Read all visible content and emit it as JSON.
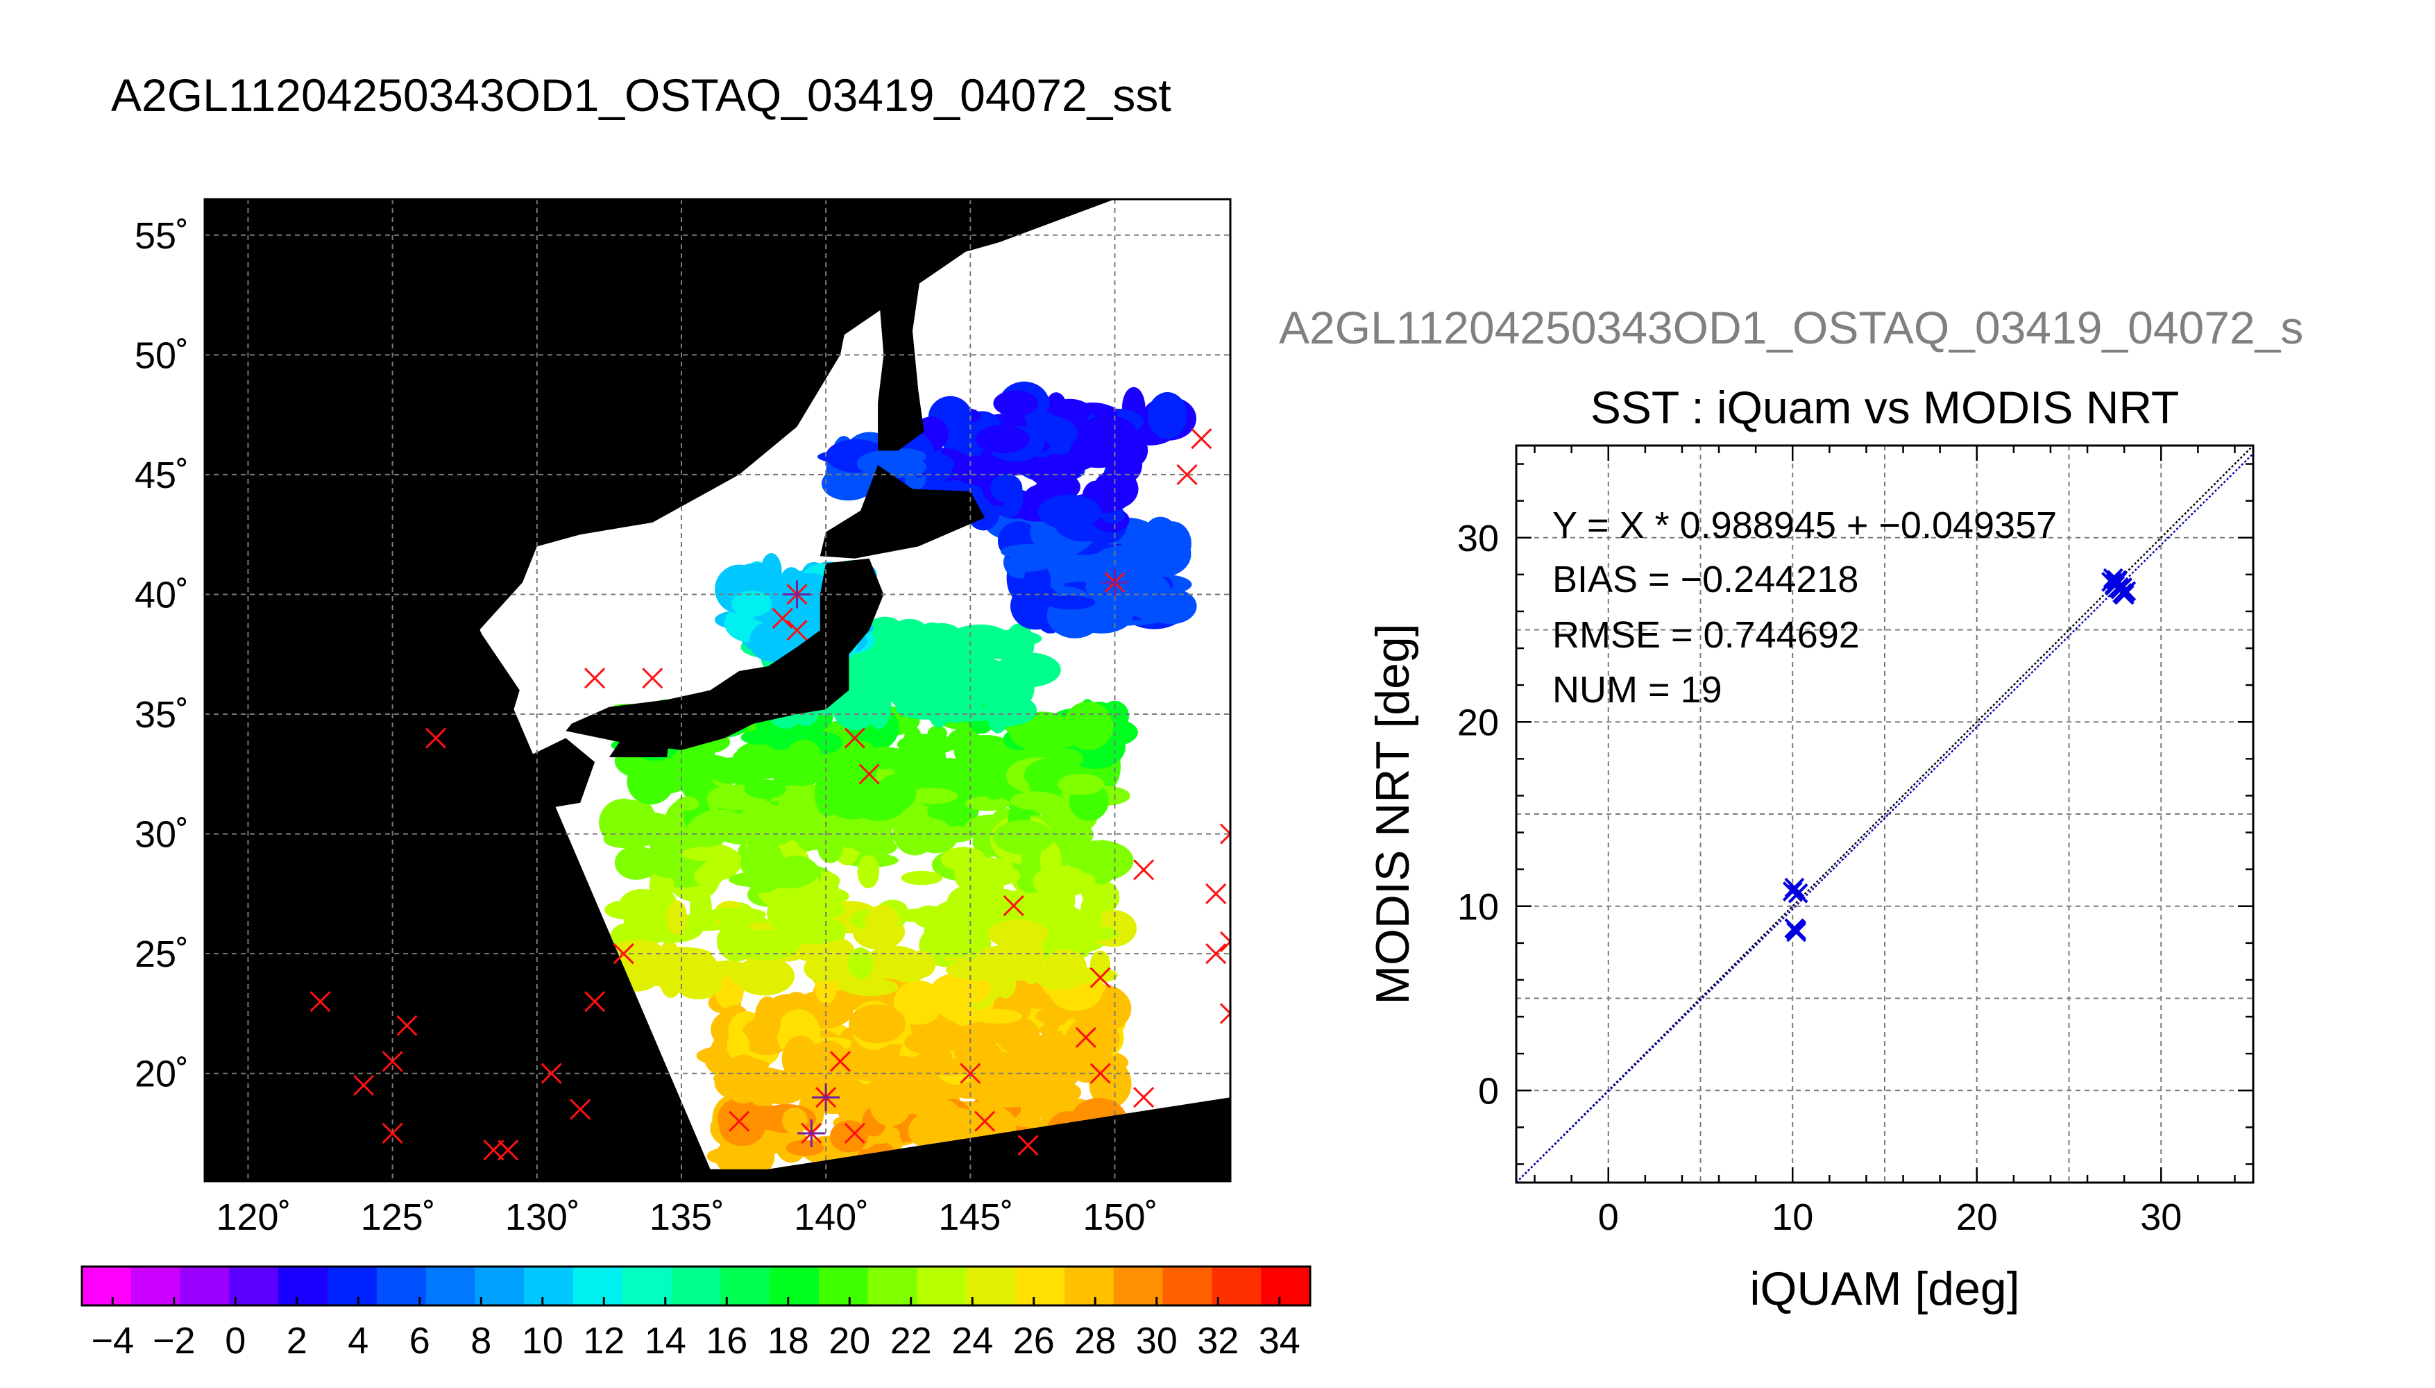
{
  "main_title": "A2GL11204250343OD1_OSTAQ_03419_04072_sst",
  "scatter_header": "A2GL11204250343OD1_OSTAQ_03419_04072_s",
  "chart_data": [
    {
      "type": "heatmap",
      "description_source": "map panel",
      "lon_ticks": [
        120,
        125,
        130,
        135,
        140,
        145,
        150
      ],
      "lat_ticks": [
        20,
        25,
        30,
        35,
        40,
        45,
        50,
        55
      ],
      "lon_tick_labels": [
        "120˚",
        "125˚",
        "130˚",
        "135˚",
        "140˚",
        "145˚",
        "150˚"
      ],
      "lat_tick_labels": [
        "20˚",
        "25˚",
        "30˚",
        "35˚",
        "40˚",
        "45˚",
        "50˚",
        "55˚"
      ],
      "lon_range": [
        118.5,
        154.0
      ],
      "lat_range": [
        15.5,
        56.5
      ],
      "swath_corners_lon_lat": [
        [
          127.5,
          40.0
        ],
        [
          147.5,
          56.5
        ],
        [
          154.0,
          56.5
        ],
        [
          154.0,
          19.0
        ],
        [
          138.0,
          16.0
        ],
        [
          136.0,
          16.0
        ]
      ],
      "colorbar": {
        "ticks": [
          -4,
          -2,
          0,
          2,
          4,
          6,
          8,
          10,
          12,
          14,
          16,
          18,
          20,
          22,
          24,
          26,
          28,
          30,
          32,
          34
        ],
        "tick_labels": [
          "−4",
          "−2",
          "0",
          "2",
          "4",
          "6",
          "8",
          "10",
          "12",
          "14",
          "16",
          "18",
          "20",
          "22",
          "24",
          "26",
          "28",
          "30",
          "32",
          "34"
        ],
        "range": [
          -5,
          35
        ],
        "colors": [
          "#ff00ff",
          "#cc00ff",
          "#9900ff",
          "#5c00ff",
          "#1a00ff",
          "#0022ff",
          "#0050ff",
          "#0078ff",
          "#00a0ff",
          "#00c8ff",
          "#00f0f0",
          "#00ffc0",
          "#00ff8c",
          "#00ff50",
          "#00ff20",
          "#40ff00",
          "#80ff00",
          "#b8ff00",
          "#e0f000",
          "#ffe000",
          "#ffc000",
          "#ff9000",
          "#ff6000",
          "#ff3000",
          "#ff0000"
        ]
      },
      "match_points_lon_lat": [
        [
          122.5,
          23.0
        ],
        [
          124.0,
          19.5
        ],
        [
          125.0,
          20.5
        ],
        [
          125.0,
          17.5
        ],
        [
          125.5,
          22.0
        ],
        [
          126.5,
          34.0
        ],
        [
          128.5,
          16.8
        ],
        [
          129.0,
          16.8
        ],
        [
          130.5,
          20.0
        ],
        [
          131.5,
          18.5
        ],
        [
          132.0,
          23.0
        ],
        [
          133.0,
          25.0
        ],
        [
          132.0,
          36.5
        ],
        [
          134.0,
          36.5
        ],
        [
          137.0,
          18.0
        ],
        [
          138.5,
          39.0
        ],
        [
          139.0,
          38.5
        ],
        [
          139.0,
          40.0
        ],
        [
          139.5,
          17.5
        ],
        [
          140.0,
          19.0
        ],
        [
          140.5,
          20.5
        ],
        [
          141.0,
          17.5
        ],
        [
          141.0,
          34.0
        ],
        [
          141.5,
          32.5
        ],
        [
          145.0,
          20.0
        ],
        [
          145.5,
          18.0
        ],
        [
          146.5,
          27.0
        ],
        [
          147.0,
          17.0
        ],
        [
          149.0,
          21.5
        ],
        [
          149.5,
          20.0
        ],
        [
          149.5,
          24.0
        ],
        [
          150.0,
          40.5
        ],
        [
          151.0,
          19.0
        ],
        [
          151.0,
          28.5
        ],
        [
          152.5,
          45.0
        ],
        [
          153.0,
          46.5
        ],
        [
          153.5,
          25.0
        ],
        [
          153.5,
          27.5
        ],
        [
          154.0,
          25.5
        ],
        [
          154.0,
          30.0
        ],
        [
          154.0,
          22.5
        ]
      ],
      "used_points_lon_lat": [
        [
          139.0,
          40.0
        ],
        [
          140.0,
          19.0
        ],
        [
          139.5,
          17.5
        ],
        [
          150.0,
          40.5
        ]
      ]
    },
    {
      "type": "scatter",
      "title": "SST : iQuam vs MODIS NRT",
      "xlabel": "iQUAM [deg]",
      "ylabel": "MODIS NRT [deg]",
      "xlim": [
        -5,
        35
      ],
      "ylim": [
        -5,
        35
      ],
      "xticks": [
        0,
        10,
        20,
        30
      ],
      "yticks": [
        0,
        10,
        20,
        30
      ],
      "grid": true,
      "annotations": [
        "Y = X * 0.988945 + −0.049357",
        "BIAS = −0.244218",
        "RMSE = 0.744692",
        "NUM = 19"
      ],
      "fit": {
        "slope": 0.988945,
        "intercept": -0.049357
      },
      "series": [
        {
          "color": "#0000e0",
          "x": [
            10.0,
            10.1,
            10.3,
            10.2,
            10.1,
            10.2,
            27.3,
            27.4,
            27.5,
            27.6,
            27.5,
            27.7,
            27.8,
            27.9,
            28.0,
            28.1,
            27.9,
            28.0,
            27.6
          ],
          "y": [
            10.8,
            11.0,
            10.7,
            8.6,
            8.8,
            8.7,
            27.6,
            27.8,
            27.5,
            27.7,
            27.4,
            27.3,
            27.2,
            27.0,
            26.9,
            27.1,
            27.3,
            27.0,
            27.6
          ]
        }
      ]
    }
  ]
}
